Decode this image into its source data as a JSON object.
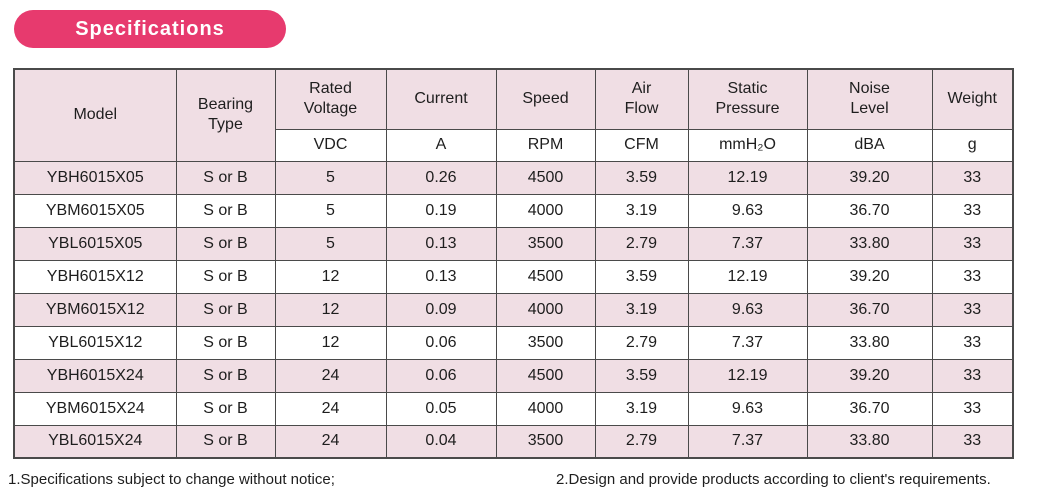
{
  "badge": {
    "label": "Specifications"
  },
  "colors": {
    "badge_pink": "#E73A6E",
    "row_pink": "#F0DEE4",
    "border": "#4A4A4A",
    "text": "#1E1E1E"
  },
  "table": {
    "columns": [
      {
        "label": "Model",
        "unit": null
      },
      {
        "label": "Bearing\nType",
        "unit": null
      },
      {
        "label": "Rated\nVoltage",
        "unit": "VDC"
      },
      {
        "label": "Current",
        "unit": "A"
      },
      {
        "label": "Speed",
        "unit": "RPM"
      },
      {
        "label": "Air\nFlow",
        "unit": "CFM"
      },
      {
        "label": "Static\nPressure",
        "unit": "mmH₂O"
      },
      {
        "label": "Noise\nLevel",
        "unit": "dBA"
      },
      {
        "label": "Weight",
        "unit": "g"
      }
    ],
    "rows": [
      [
        "YBH6015X05",
        "S or B",
        "5",
        "0.26",
        "4500",
        "3.59",
        "12.19",
        "39.20",
        "33"
      ],
      [
        "YBM6015X05",
        "S or B",
        "5",
        "0.19",
        "4000",
        "3.19",
        "9.63",
        "36.70",
        "33"
      ],
      [
        "YBL6015X05",
        "S or B",
        "5",
        "0.13",
        "3500",
        "2.79",
        "7.37",
        "33.80",
        "33"
      ],
      [
        "YBH6015X12",
        "S or B",
        "12",
        "0.13",
        "4500",
        "3.59",
        "12.19",
        "39.20",
        "33"
      ],
      [
        "YBM6015X12",
        "S or B",
        "12",
        "0.09",
        "4000",
        "3.19",
        "9.63",
        "36.70",
        "33"
      ],
      [
        "YBL6015X12",
        "S or B",
        "12",
        "0.06",
        "3500",
        "2.79",
        "7.37",
        "33.80",
        "33"
      ],
      [
        "YBH6015X24",
        "S or B",
        "24",
        "0.06",
        "4500",
        "3.59",
        "12.19",
        "39.20",
        "33"
      ],
      [
        "YBM6015X24",
        "S or B",
        "24",
        "0.05",
        "4000",
        "3.19",
        "9.63",
        "36.70",
        "33"
      ],
      [
        "YBL6015X24",
        "S or B",
        "24",
        "0.04",
        "3500",
        "2.79",
        "7.37",
        "33.80",
        "33"
      ]
    ]
  },
  "footnotes": {
    "note1": "1.Specifications subject to change without notice;",
    "note2": "2.Design and provide products according to client's requirements."
  }
}
